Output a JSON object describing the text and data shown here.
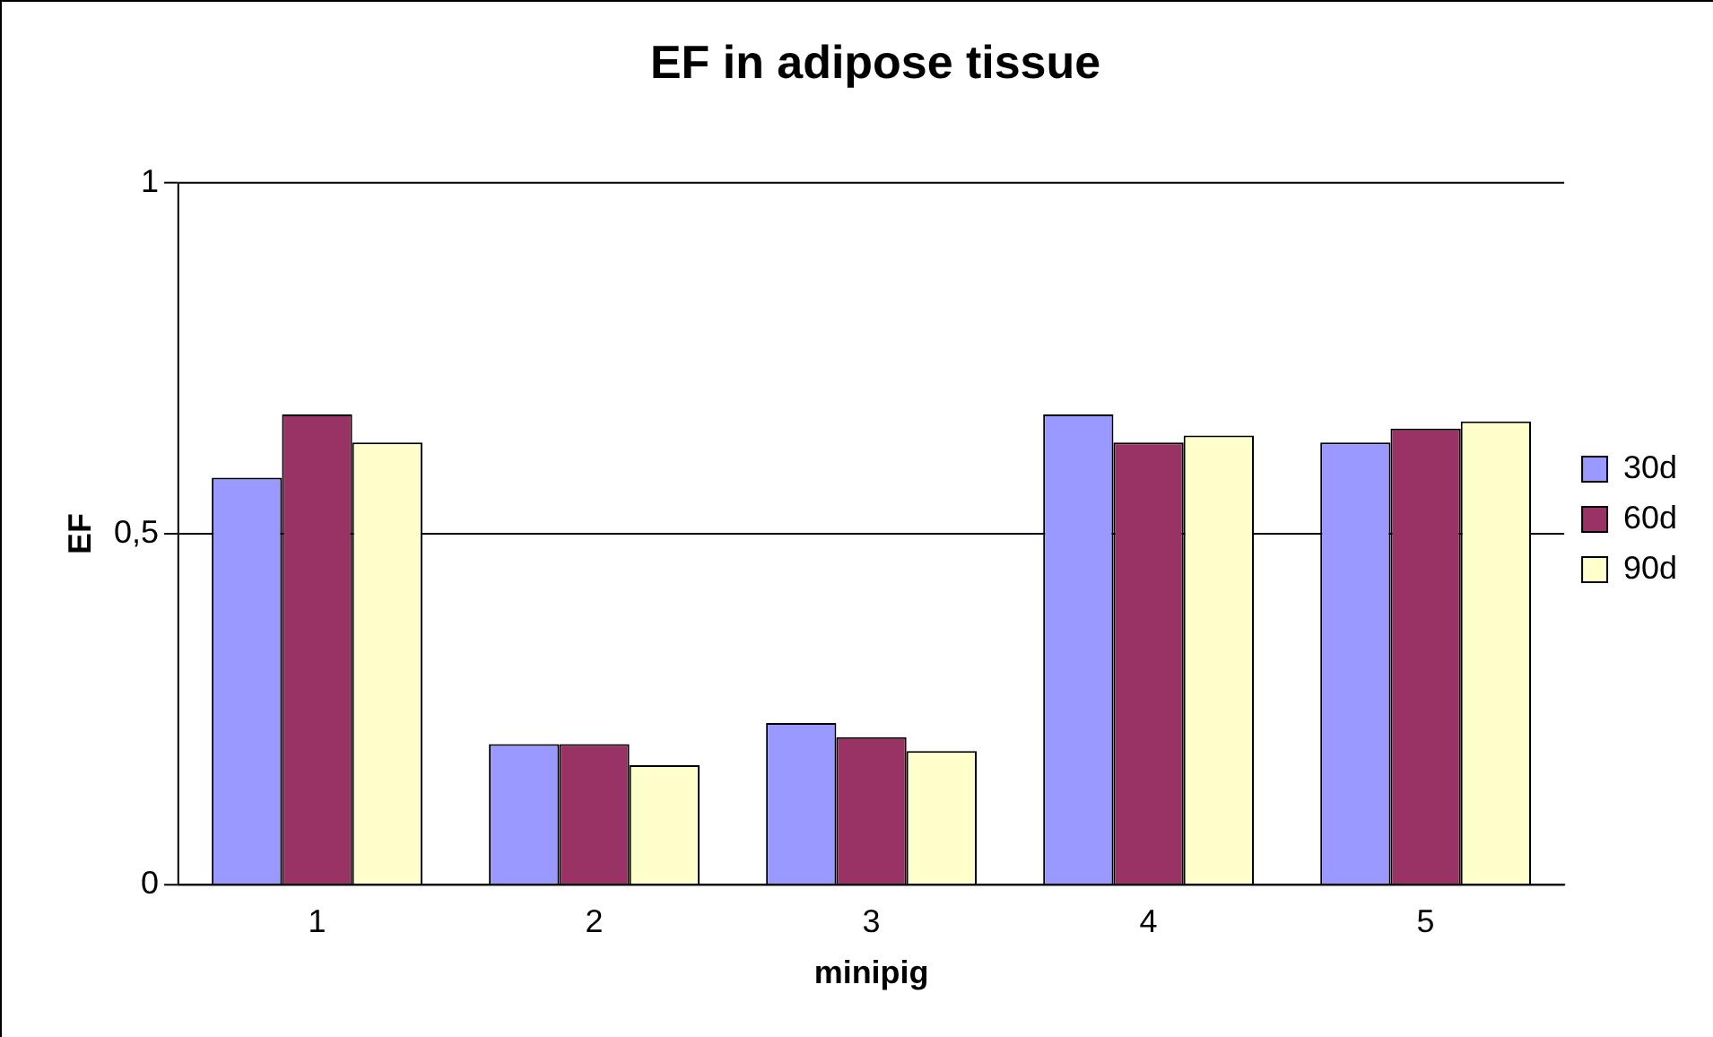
{
  "chart_data": {
    "type": "bar",
    "title": "EF in adipose tissue",
    "xlabel": "minipig",
    "ylabel": "EF",
    "categories": [
      "1",
      "2",
      "3",
      "4",
      "5"
    ],
    "series": [
      {
        "name": "30d",
        "color": "#9999ff",
        "values": [
          0.58,
          0.2,
          0.23,
          0.67,
          0.63
        ]
      },
      {
        "name": "60d",
        "color": "#993366",
        "values": [
          0.67,
          0.2,
          0.21,
          0.63,
          0.65
        ]
      },
      {
        "name": "90d",
        "color": "#ffffcc",
        "values": [
          0.63,
          0.17,
          0.19,
          0.64,
          0.66
        ]
      }
    ],
    "ylim": [
      0,
      1
    ],
    "yticks": [
      0,
      {
        "value": 0.5,
        "label": "0,5"
      },
      1
    ],
    "grid": "y",
    "legend": "right"
  }
}
